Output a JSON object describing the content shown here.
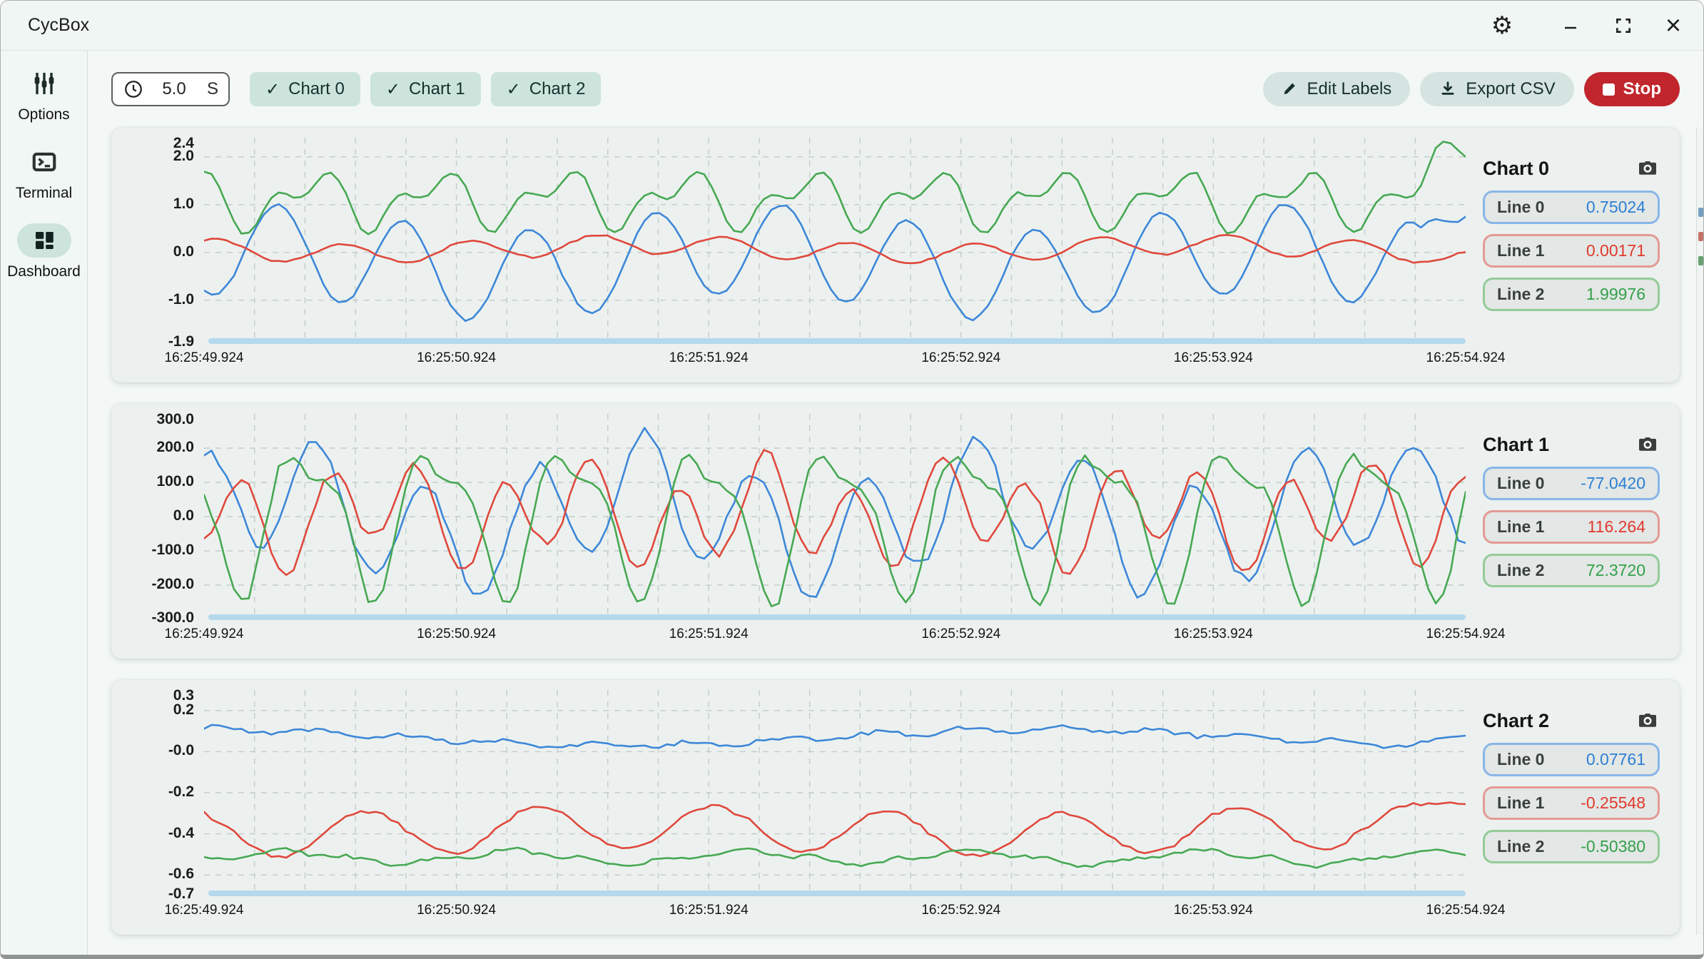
{
  "window": {
    "title": "CycBox"
  },
  "icons": {
    "check": "✓",
    "gear": "⚙",
    "close": "×"
  },
  "sidebar": {
    "items": [
      {
        "id": "options",
        "label": "Options",
        "active": false
      },
      {
        "id": "terminal",
        "label": "Terminal",
        "active": false
      },
      {
        "id": "dashboard",
        "label": "Dashboard",
        "active": true
      }
    ]
  },
  "toolbar": {
    "interval": {
      "value": "5.0",
      "unit": "S"
    },
    "chart_toggles": [
      {
        "label": "Chart 0",
        "checked": true
      },
      {
        "label": "Chart 1",
        "checked": true
      },
      {
        "label": "Chart 2",
        "checked": true
      }
    ],
    "edit_labels_label": "Edit Labels",
    "export_csv_label": "Export CSV",
    "stop_label": "Stop"
  },
  "colors": {
    "grid": "#c2ccc8",
    "progress_bar": "#b5d8ed",
    "accent_teal_bg": "#cde4dd",
    "stop_red": "#c0262c",
    "lines": {
      "blue": {
        "line": "#3d87d8",
        "badge_border": "#8ab5e8",
        "value_text": "#2b7fd4"
      },
      "red": {
        "line": "#e0483c",
        "badge_border": "#e39a94",
        "value_text": "#e2392e"
      },
      "green": {
        "line": "#47a852",
        "badge_border": "#94cb97",
        "value_text": "#33a04a"
      }
    }
  },
  "chart_data": [
    {
      "type": "line",
      "title": "Chart 0",
      "xlim_s": [
        0,
        5
      ],
      "x_tick_labels": [
        "16:25:49.924",
        "16:25:50.924",
        "16:25:51.924",
        "16:25:52.924",
        "16:25:53.924",
        "16:25:54.924"
      ],
      "ylim": [
        -1.9,
        2.4
      ],
      "y_edge_labels": {
        "top": "2.4",
        "bottom": "-1.9"
      },
      "y_grid": [
        {
          "v": 2.0,
          "label": "2.0"
        },
        {
          "v": 1.0,
          "label": "1.0"
        },
        {
          "v": 0.0,
          "label": "0.0"
        },
        {
          "v": -1.0,
          "label": "-1.0"
        }
      ],
      "grid_dashed": true,
      "legend_position": "right",
      "series": [
        {
          "name": "Line 0",
          "color_key": "blue",
          "display_value": "0.75024",
          "wave": {
            "offset": -0.2,
            "terms": [
              [
                0.95,
                2.0,
                4.2
              ],
              [
                0.28,
                0.5,
                1.0
              ]
            ],
            "noise": 0.03,
            "seed": 101
          }
        },
        {
          "name": "Line 1",
          "color_key": "red",
          "display_value": "0.00171",
          "wave": {
            "offset": 0.07,
            "terms": [
              [
                0.2,
                2.0,
                0.9
              ],
              [
                0.1,
                0.45,
                3.0
              ]
            ],
            "noise": 0.018,
            "seed": 102
          }
        },
        {
          "name": "Line 2",
          "color_key": "green",
          "display_value": "1.99976",
          "wave": {
            "offset": 1.1,
            "terms": [
              [
                0.45,
                2.05,
                2.2
              ],
              [
                0.3,
                4.1,
                0.8
              ]
            ],
            "noise": 0.03,
            "seed": 103
          }
        }
      ]
    },
    {
      "type": "line",
      "title": "Chart 1",
      "xlim_s": [
        0,
        5
      ],
      "x_tick_labels": [
        "16:25:49.924",
        "16:25:50.924",
        "16:25:51.924",
        "16:25:52.924",
        "16:25:53.924",
        "16:25:54.924"
      ],
      "ylim": [
        -300,
        300
      ],
      "y_edge_labels": {
        "top": "300.0",
        "bottom": "-300.0"
      },
      "y_grid": [
        {
          "v": 200,
          "label": "200.0"
        },
        {
          "v": 100,
          "label": "100.0"
        },
        {
          "v": 0,
          "label": "0.0"
        },
        {
          "v": -100,
          "label": "-100.0"
        },
        {
          "v": -200,
          "label": "-200.0"
        }
      ],
      "grid_dashed": true,
      "legend_position": "right",
      "series": [
        {
          "name": "Line 0",
          "color_key": "blue",
          "display_value": "-77.0420",
          "wave": {
            "offset": 0,
            "terms": [
              [
                160,
                2.3,
                1.4
              ],
              [
                80,
                0.7,
                0.3
              ]
            ],
            "noise": 14,
            "seed": 201
          }
        },
        {
          "name": "Line 1",
          "color_key": "red",
          "display_value": "116.264",
          "wave": {
            "offset": 5,
            "terms": [
              [
                120,
                2.9,
                5.0
              ],
              [
                55,
                1.3,
                2.2
              ]
            ],
            "noise": 12,
            "seed": 202
          }
        },
        {
          "name": "Line 2",
          "color_key": "green",
          "display_value": "72.3720",
          "wave": {
            "offset": 0,
            "terms": [
              [
                190,
                1.9,
                3.1
              ],
              [
                70,
                3.8,
                0.9
              ]
            ],
            "noise": 12,
            "seed": 203
          }
        }
      ]
    },
    {
      "type": "line",
      "title": "Chart 2",
      "xlim_s": [
        0,
        5
      ],
      "x_tick_labels": [
        "16:25:49.924",
        "16:25:50.924",
        "16:25:51.924",
        "16:25:52.924",
        "16:25:53.924",
        "16:25:54.924"
      ],
      "ylim": [
        -0.7,
        0.3
      ],
      "y_edge_labels": {
        "top": "0.3",
        "bottom": "-0.7"
      },
      "y_grid": [
        {
          "v": 0.2,
          "label": "0.2"
        },
        {
          "v": 0.0,
          "label": "-0.0"
        },
        {
          "v": -0.2,
          "label": "-0.2"
        },
        {
          "v": -0.4,
          "label": "-0.4"
        },
        {
          "v": -0.6,
          "label": "-0.6"
        }
      ],
      "grid_dashed": true,
      "legend_position": "right",
      "series": [
        {
          "name": "Line 0",
          "color_key": "blue",
          "display_value": "0.07761",
          "wave": {
            "offset": 0.07,
            "terms": [
              [
                0.04,
                0.3,
                1.6
              ],
              [
                0.012,
                2.7,
                0.4
              ]
            ],
            "noise": 0.009,
            "seed": 301
          }
        },
        {
          "name": "Line 1",
          "color_key": "red",
          "display_value": "-0.25548",
          "wave": {
            "offset": -0.385,
            "terms": [
              [
                0.105,
                1.45,
                2.0
              ],
              [
                0.02,
                0.35,
                4.0
              ]
            ],
            "noise": 0.01,
            "seed": 302
          }
        },
        {
          "name": "Line 2",
          "color_key": "green",
          "display_value": "-0.50380",
          "wave": {
            "offset": -0.515,
            "terms": [
              [
                0.03,
                1.1,
                5.6
              ],
              [
                0.012,
                3.3,
                1.5
              ]
            ],
            "noise": 0.008,
            "seed": 303
          }
        }
      ]
    }
  ]
}
